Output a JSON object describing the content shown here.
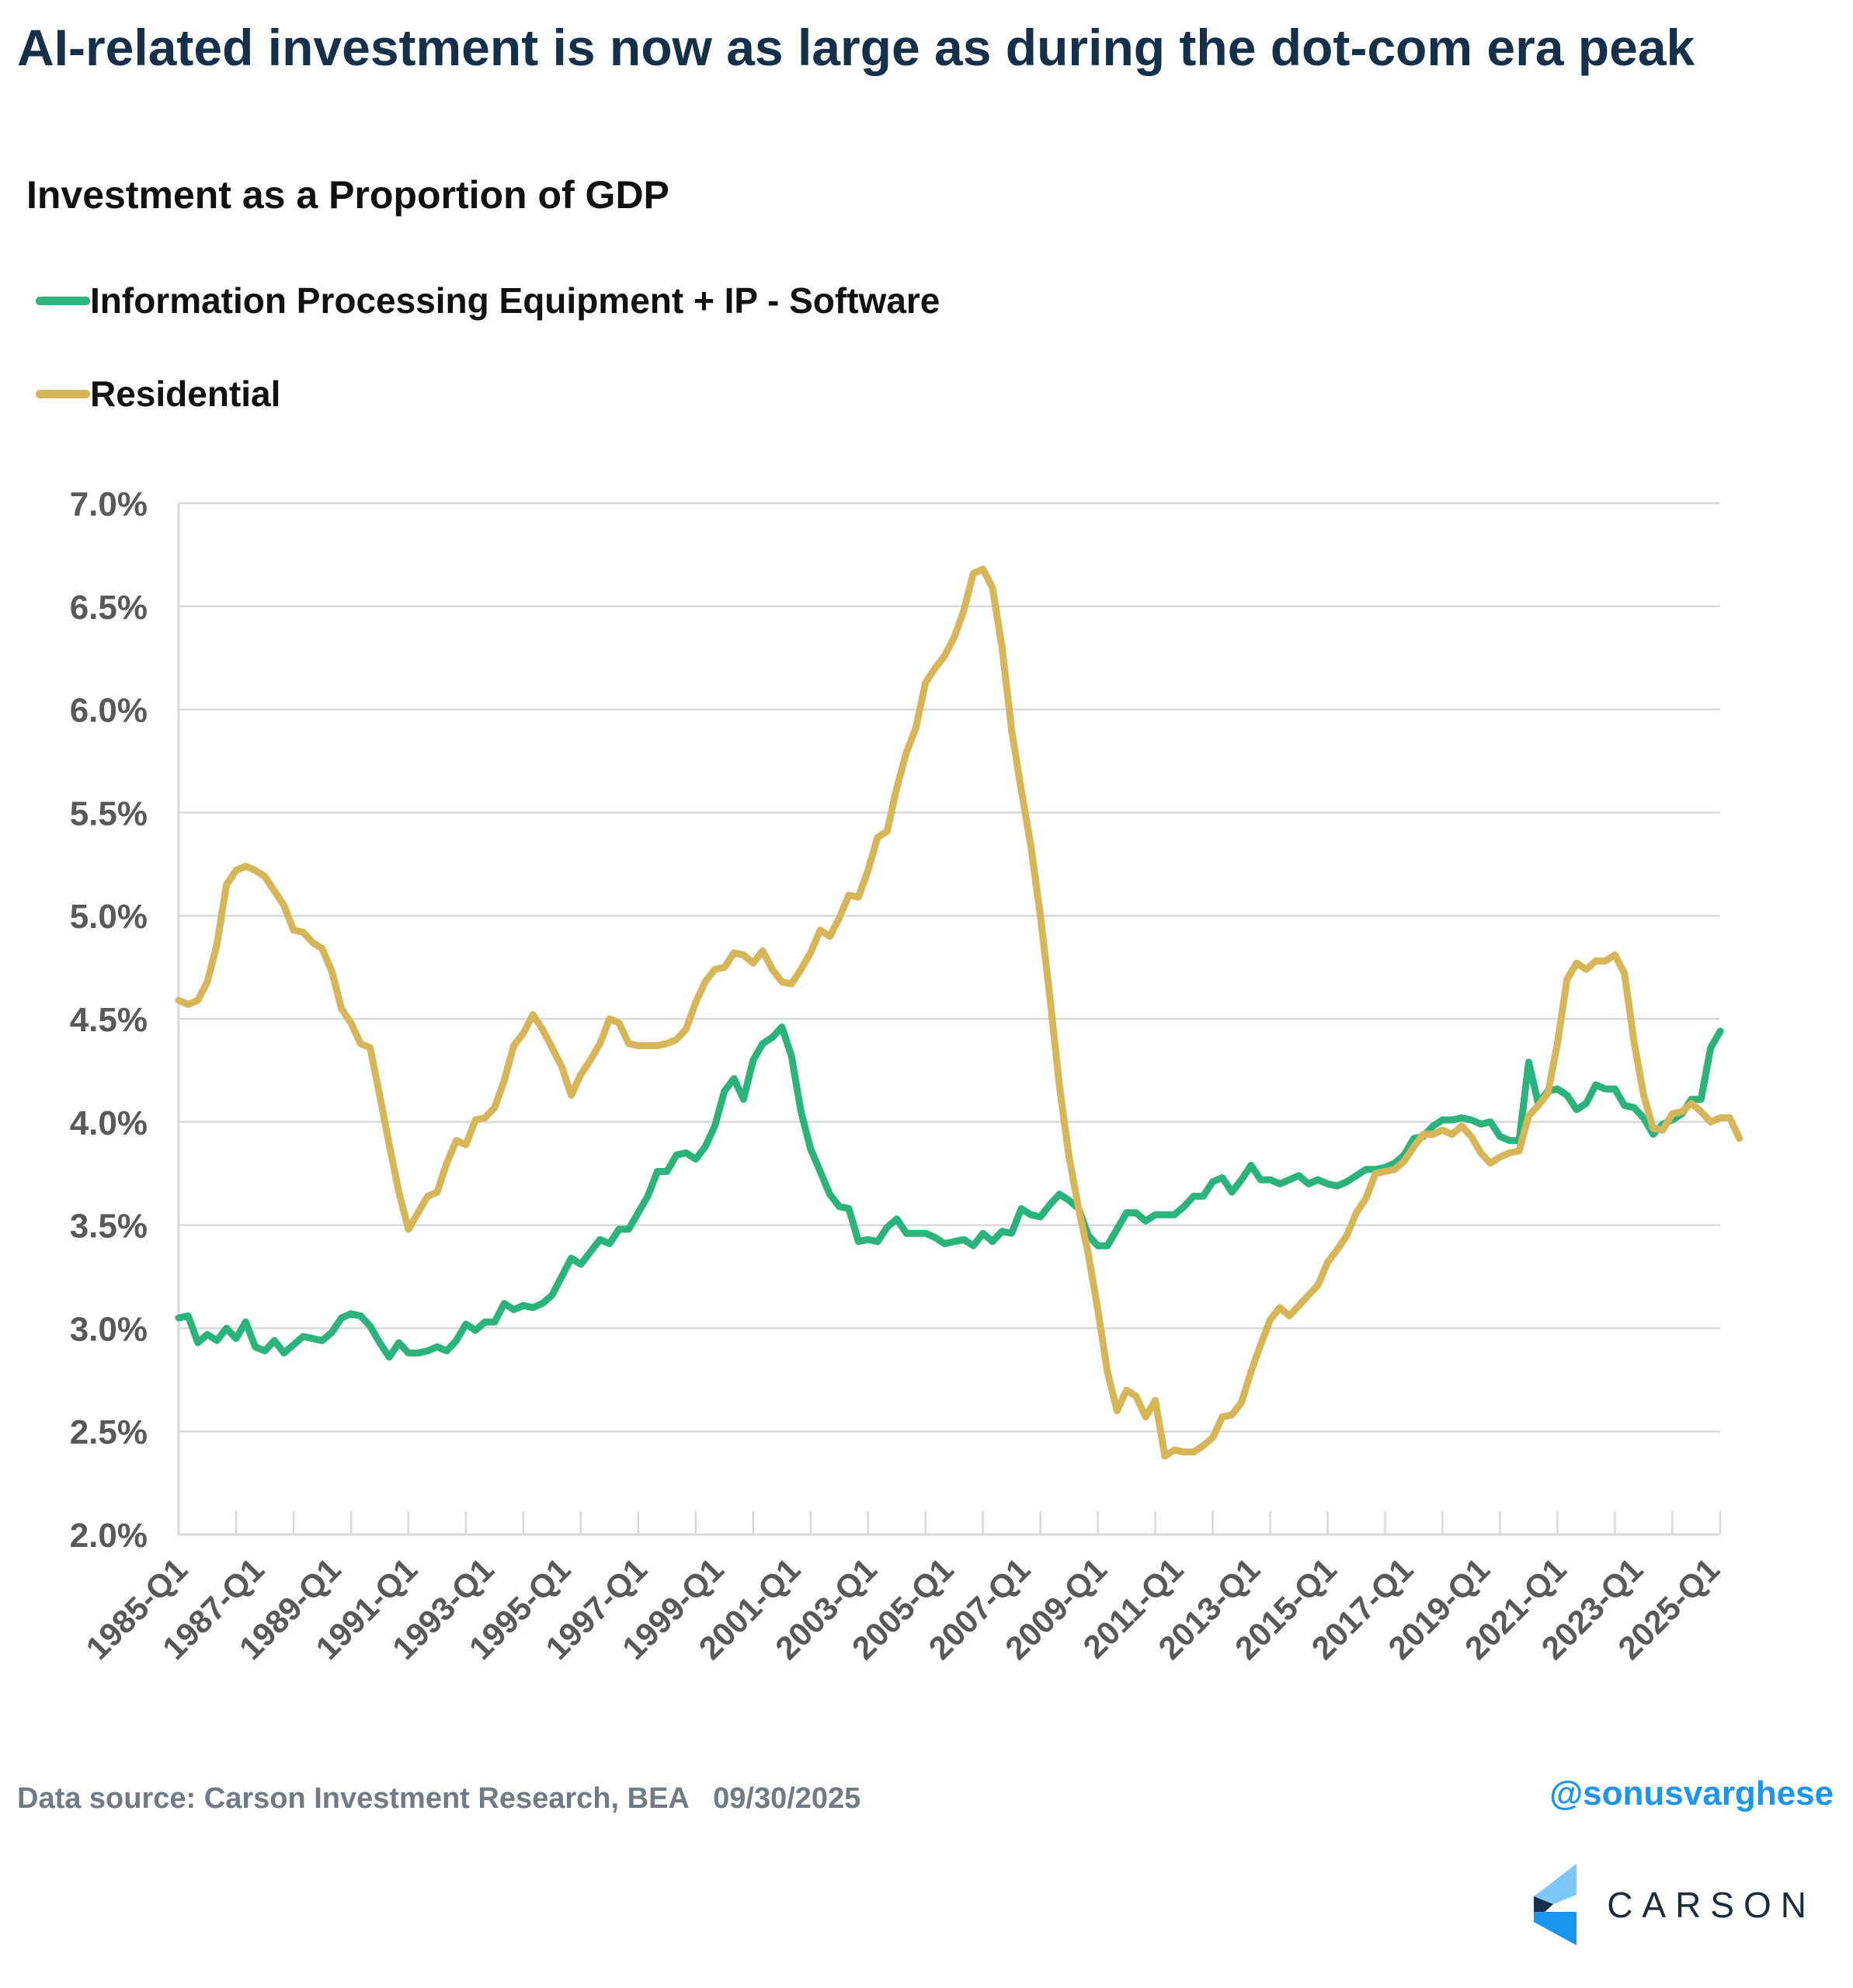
{
  "header": {
    "title": "AI-related investment is now as large as during the dot-com era peak",
    "subtitle": "Investment as a Proportion of GDP"
  },
  "legend": [
    {
      "label": "Information Processing Equipment + IP - Software",
      "color": "#2ab47b"
    },
    {
      "label": "Residential",
      "color": "#d6b656"
    }
  ],
  "footer": {
    "source": "Data source: Carson Investment Research, BEA   09/30/2025",
    "handle": "@sonusvarghese",
    "logo_text": "CARSON"
  },
  "chart_data": {
    "type": "line",
    "title": "Investment as a Proportion of GDP",
    "xlabel": "",
    "ylabel": "",
    "ylim": [
      2.0,
      7.0
    ],
    "y_ticks": [
      "2.0%",
      "2.5%",
      "3.0%",
      "3.5%",
      "4.0%",
      "4.5%",
      "5.0%",
      "5.5%",
      "6.0%",
      "6.5%",
      "7.0%"
    ],
    "x_tick_labels": [
      "1985-Q1",
      "1987-Q1",
      "1989-Q1",
      "1991-Q1",
      "1993-Q1",
      "1995-Q1",
      "1997-Q1",
      "1999-Q1",
      "2001-Q1",
      "2003-Q1",
      "2005-Q1",
      "2007-Q1",
      "2009-Q1",
      "2011-Q1",
      "2013-Q1",
      "2015-Q1",
      "2017-Q1",
      "2019-Q1",
      "2021-Q1",
      "2023-Q1",
      "2025-Q1"
    ],
    "x_start": "1985-Q1",
    "x_end": "2025-Q3",
    "frequency": "quarterly",
    "grid": true,
    "legend_position": "top-left",
    "series": [
      {
        "name": "Information Processing Equipment + IP - Software",
        "color": "#2ab47b",
        "values": [
          3.05,
          3.06,
          2.93,
          2.97,
          2.94,
          3.0,
          2.95,
          3.03,
          2.91,
          2.89,
          2.94,
          2.88,
          2.92,
          2.96,
          2.95,
          2.94,
          2.98,
          3.05,
          3.07,
          3.06,
          3.01,
          2.93,
          2.86,
          2.93,
          2.88,
          2.88,
          2.89,
          2.91,
          2.89,
          2.94,
          3.02,
          2.99,
          3.03,
          3.03,
          3.12,
          3.09,
          3.11,
          3.1,
          3.12,
          3.16,
          3.25,
          3.34,
          3.31,
          3.37,
          3.43,
          3.41,
          3.48,
          3.48,
          3.56,
          3.64,
          3.76,
          3.76,
          3.84,
          3.85,
          3.82,
          3.88,
          3.98,
          4.15,
          4.21,
          4.11,
          4.3,
          4.38,
          4.41,
          4.46,
          4.32,
          4.05,
          3.87,
          3.76,
          3.65,
          3.59,
          3.58,
          3.42,
          3.43,
          3.42,
          3.49,
          3.53,
          3.46,
          3.46,
          3.46,
          3.44,
          3.41,
          3.42,
          3.43,
          3.4,
          3.46,
          3.42,
          3.47,
          3.46,
          3.58,
          3.55,
          3.54,
          3.6,
          3.65,
          3.62,
          3.58,
          3.45,
          3.4,
          3.4,
          3.48,
          3.56,
          3.56,
          3.52,
          3.55,
          3.55,
          3.55,
          3.59,
          3.64,
          3.64,
          3.71,
          3.73,
          3.66,
          3.72,
          3.79,
          3.72,
          3.72,
          3.7,
          3.72,
          3.74,
          3.7,
          3.72,
          3.7,
          3.69,
          3.71,
          3.74,
          3.77,
          3.77,
          3.78,
          3.8,
          3.84,
          3.92,
          3.93,
          3.98,
          4.01,
          4.01,
          4.02,
          4.01,
          3.99,
          4.0,
          3.93,
          3.91,
          3.91,
          4.29,
          4.09,
          4.15,
          4.16,
          4.13,
          4.06,
          4.09,
          4.18,
          4.16,
          4.16,
          4.08,
          4.07,
          4.02,
          3.94,
          3.99,
          4.01,
          4.04,
          4.11,
          4.11,
          4.36,
          4.44
        ]
      },
      {
        "name": "Residential",
        "color": "#d6b656",
        "values": [
          4.59,
          4.57,
          4.59,
          4.68,
          4.86,
          5.15,
          5.22,
          5.24,
          5.22,
          5.19,
          5.12,
          5.05,
          4.93,
          4.92,
          4.87,
          4.84,
          4.73,
          4.55,
          4.48,
          4.38,
          4.36,
          4.13,
          3.89,
          3.66,
          3.48,
          3.56,
          3.64,
          3.66,
          3.8,
          3.91,
          3.89,
          4.01,
          4.02,
          4.07,
          4.2,
          4.37,
          4.43,
          4.52,
          4.45,
          4.36,
          4.27,
          4.13,
          4.23,
          4.3,
          4.38,
          4.5,
          4.48,
          4.38,
          4.37,
          4.37,
          4.37,
          4.38,
          4.4,
          4.45,
          4.58,
          4.68,
          4.74,
          4.75,
          4.82,
          4.81,
          4.77,
          4.83,
          4.74,
          4.68,
          4.67,
          4.74,
          4.82,
          4.93,
          4.9,
          4.99,
          5.1,
          5.09,
          5.22,
          5.38,
          5.41,
          5.62,
          5.79,
          5.91,
          6.13,
          6.2,
          6.26,
          6.35,
          6.48,
          6.66,
          6.68,
          6.59,
          6.3,
          5.9,
          5.61,
          5.34,
          5.0,
          4.6,
          4.17,
          3.83,
          3.58,
          3.36,
          3.09,
          2.79,
          2.6,
          2.7,
          2.67,
          2.57,
          2.65,
          2.38,
          2.41,
          2.4,
          2.4,
          2.43,
          2.47,
          2.57,
          2.58,
          2.64,
          2.79,
          2.92,
          3.04,
          3.1,
          3.06,
          3.11,
          3.16,
          3.21,
          3.32,
          3.38,
          3.45,
          3.56,
          3.63,
          3.75,
          3.76,
          3.77,
          3.81,
          3.88,
          3.94,
          3.94,
          3.96,
          3.94,
          3.98,
          3.93,
          3.85,
          3.8,
          3.83,
          3.85,
          3.86,
          4.03,
          4.08,
          4.14,
          4.38,
          4.69,
          4.77,
          4.74,
          4.78,
          4.78,
          4.81,
          4.72,
          4.39,
          4.13,
          3.97,
          3.96,
          4.04,
          4.05,
          4.09,
          4.05,
          4.0,
          4.02,
          4.02,
          3.92
        ]
      }
    ]
  }
}
